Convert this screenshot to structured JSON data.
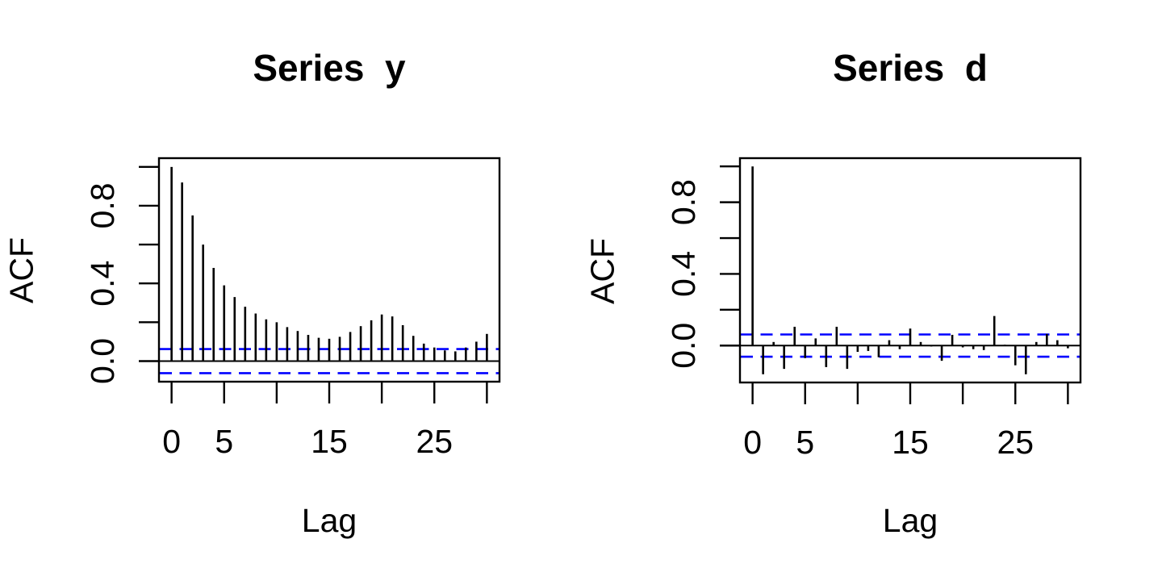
{
  "figure": {
    "background": "#ffffff"
  },
  "colors": {
    "stems": "#000000",
    "axis": "#000000",
    "text": "#000000",
    "confidence": "#0000ff"
  },
  "chart_data": [
    {
      "type": "bar",
      "subtype": "acf-stem-plot",
      "title": "Series  y",
      "xlabel": "Lag",
      "ylabel": "ACF",
      "lags": [
        0,
        1,
        2,
        3,
        4,
        5,
        6,
        7,
        8,
        9,
        10,
        11,
        12,
        13,
        14,
        15,
        16,
        17,
        18,
        19,
        20,
        21,
        22,
        23,
        24,
        25,
        26,
        27,
        28,
        29,
        30
      ],
      "acf_values": [
        1.0,
        0.92,
        0.75,
        0.6,
        0.48,
        0.39,
        0.33,
        0.28,
        0.245,
        0.215,
        0.2,
        0.175,
        0.155,
        0.135,
        0.12,
        0.115,
        0.125,
        0.15,
        0.18,
        0.21,
        0.24,
        0.23,
        0.185,
        0.13,
        0.09,
        0.07,
        0.055,
        0.05,
        0.07,
        0.1,
        0.14
      ],
      "confidence_bounds": [
        -0.062,
        0.062
      ],
      "confidence_line_style": "dashed",
      "xlim": [
        -1.2,
        31.2
      ],
      "ylim": [
        -0.106,
        1.045
      ],
      "x_ticks": [
        0,
        5,
        10,
        15,
        20,
        25,
        30
      ],
      "x_tick_labels": [
        "0",
        "5",
        "",
        "15",
        "",
        "25",
        ""
      ],
      "y_ticks": [
        0,
        0.2,
        0.4,
        0.6,
        0.8,
        1.0
      ],
      "y_tick_labels": [
        "0.0",
        "",
        "0.4",
        "",
        "0.8",
        ""
      ],
      "grid": false,
      "legend": null
    },
    {
      "type": "bar",
      "subtype": "acf-stem-plot",
      "title": "Series  d",
      "xlabel": "Lag",
      "ylabel": "ACF",
      "lags": [
        0,
        1,
        2,
        3,
        4,
        5,
        6,
        7,
        8,
        9,
        10,
        11,
        12,
        13,
        14,
        15,
        16,
        17,
        18,
        19,
        20,
        21,
        22,
        23,
        24,
        25,
        26,
        27,
        28,
        29,
        30
      ],
      "acf_values": [
        1.0,
        -0.16,
        0.02,
        -0.13,
        0.105,
        -0.07,
        0.04,
        -0.12,
        0.105,
        -0.13,
        -0.035,
        -0.03,
        -0.065,
        0.03,
        -0.02,
        0.095,
        0.02,
        -0.005,
        -0.085,
        0.06,
        -0.01,
        -0.02,
        -0.025,
        0.165,
        0.005,
        -0.11,
        -0.16,
        0.02,
        0.065,
        0.03,
        -0.015
      ],
      "confidence_bounds": [
        -0.062,
        0.062
      ],
      "confidence_line_style": "dashed",
      "xlim": [
        -1.2,
        31.2
      ],
      "ylim": [
        -0.206,
        1.046
      ],
      "x_ticks": [
        0,
        5,
        10,
        15,
        20,
        25,
        30
      ],
      "x_tick_labels": [
        "0",
        "5",
        "",
        "15",
        "",
        "25",
        ""
      ],
      "y_ticks": [
        0,
        0.2,
        0.4,
        0.6,
        0.8,
        1.0
      ],
      "y_tick_labels": [
        "0.0",
        "",
        "0.4",
        "",
        "0.8",
        ""
      ],
      "grid": false,
      "legend": null
    }
  ]
}
